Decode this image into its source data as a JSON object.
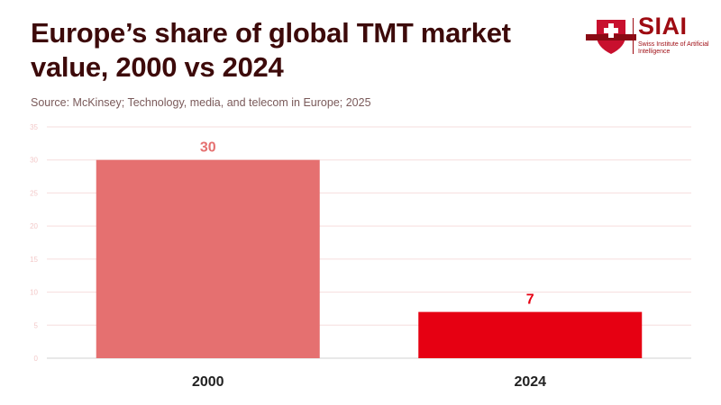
{
  "header": {
    "title": "Europe’s share of global TMT market value, 2000 vs 2024",
    "source": "Source: McKinsey; Technology, media, and telecom in Europe; 2025",
    "logo": {
      "name": "SIAI",
      "subtitle": "Swiss Institute of Artificial Intelligence"
    }
  },
  "chart_data": {
    "type": "bar",
    "title": "Europe’s share of global TMT market value, 2000 vs 2024",
    "categories": [
      "2000",
      "2024"
    ],
    "values": [
      30,
      7
    ],
    "colors": [
      "#e57070",
      "#e60012"
    ],
    "data_labels": [
      "30",
      "7"
    ],
    "xlabel": "",
    "ylabel": "",
    "ylim": [
      0,
      35
    ],
    "yticks": [
      0,
      5,
      10,
      15,
      20,
      25,
      30,
      35
    ],
    "grid": true,
    "legend": "none"
  }
}
